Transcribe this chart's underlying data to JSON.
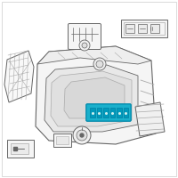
{
  "bg_color": "#ffffff",
  "lc": "#aaaaaa",
  "dc": "#666666",
  "hc": "#1ab0cc",
  "hc_dark": "#0088aa",
  "fig_width": 2.0,
  "fig_height": 2.0,
  "dpi": 100
}
